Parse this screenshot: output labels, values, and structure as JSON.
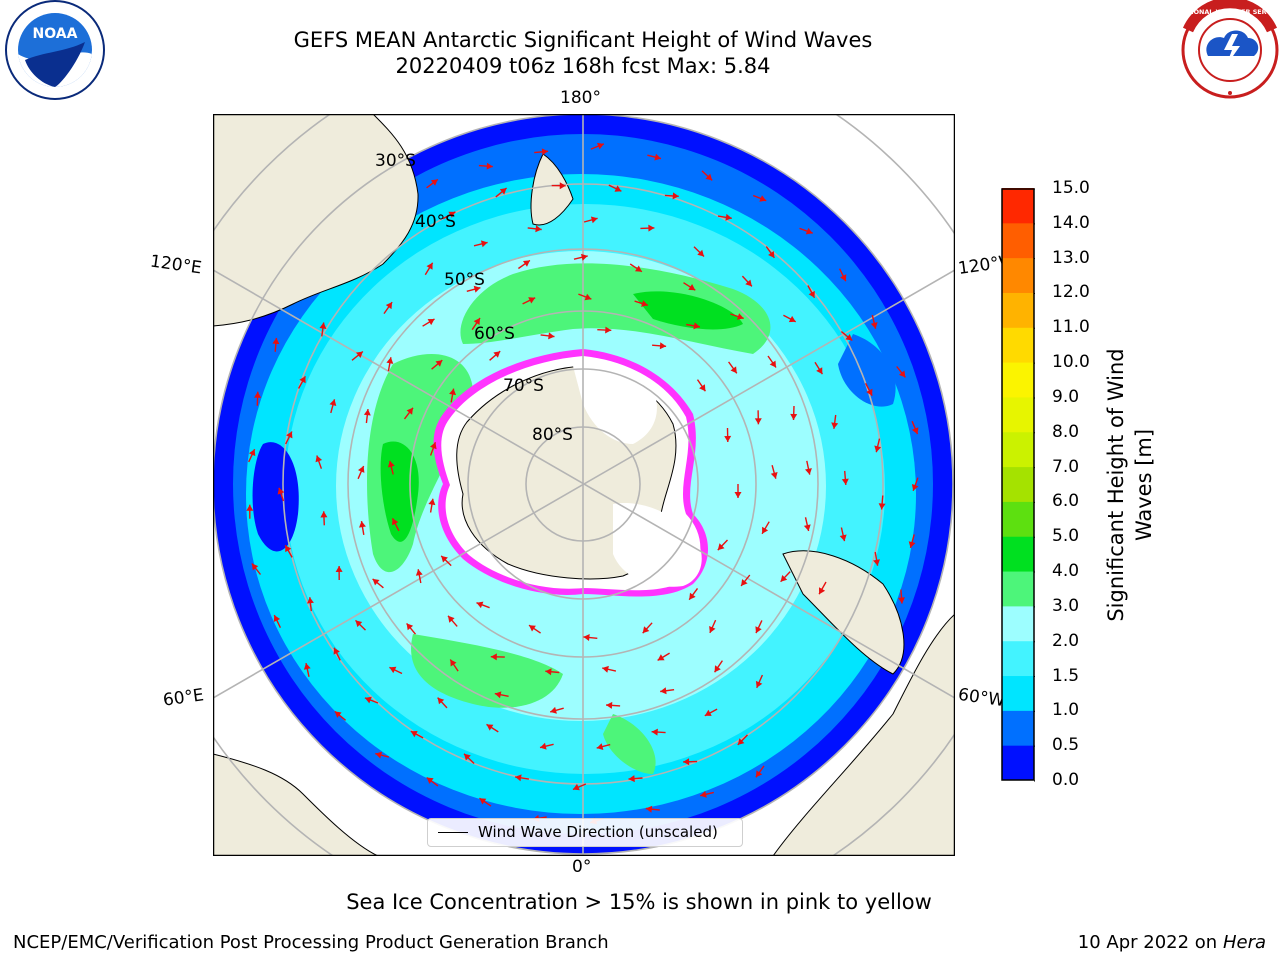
{
  "header": {
    "title_line1": "GEFS MEAN Antarctic Significant Height of Wind Waves",
    "title_line2": "20220409 t06z 168h fcst   Max: 5.84"
  },
  "logos": {
    "left": {
      "text": "NOAA"
    },
    "right": {
      "text": "NATIONAL WEATHER SERVICE"
    }
  },
  "map": {
    "projection": "south-polar-stereographic",
    "center": "South Pole",
    "lat_labels": [
      "30°S",
      "40°S",
      "50°S",
      "60°S",
      "70°S",
      "80°S"
    ],
    "lon_labels": {
      "top": "180°",
      "left_upper": "120°E",
      "right_upper": "120°W",
      "left_lower": "60°E",
      "right_lower": "60°W",
      "bottom": "0°"
    },
    "colors": {
      "land": "#efecdc",
      "ice": "#ffffff",
      "ice_edge": "#ff33ff",
      "arrows": "#e81010",
      "grid": "#b4b4b4"
    }
  },
  "legend": {
    "wind_wave_direction": "Wind Wave Direction (unscaled)"
  },
  "colorbar": {
    "label_line1": "Significant Height of Wind",
    "label_line2": "Waves [m]",
    "ticks": [
      "0.0",
      "0.5",
      "1.0",
      "1.5",
      "2.0",
      "3.0",
      "4.0",
      "5.0",
      "6.0",
      "7.0",
      "8.0",
      "9.0",
      "10.0",
      "11.0",
      "12.0",
      "13.0",
      "14.0",
      "15.0"
    ],
    "colors": [
      "#0010ff",
      "#0070ff",
      "#00e5ff",
      "#43f3ff",
      "#9dfeff",
      "#4df57a",
      "#00e020",
      "#5de010",
      "#a5e200",
      "#cbf200",
      "#e7f500",
      "#fbf400",
      "#ffda00",
      "#ffb300",
      "#ff8800",
      "#ff5e00",
      "#ff2800"
    ]
  },
  "notes": {
    "sea_ice": "Sea Ice Concentration > 15% is shown in pink to yellow",
    "producer": "NCEP/EMC/Verification Post Processing Product Generation Branch",
    "date_prefix": "10 Apr 2022 on ",
    "machine": "Hera"
  }
}
